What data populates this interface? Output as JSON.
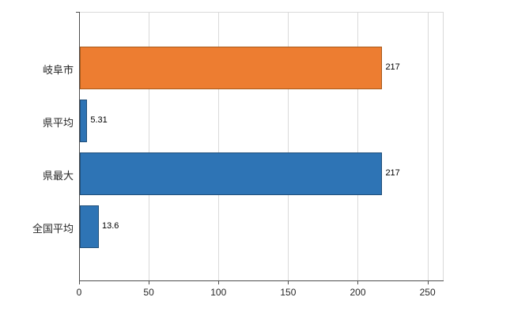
{
  "chart_data": {
    "type": "bar",
    "orientation": "horizontal",
    "title": "",
    "xlabel": "",
    "ylabel": "",
    "categories": [
      "岐阜市",
      "県平均",
      "県最大",
      "全国平均"
    ],
    "values": [
      217,
      5.31,
      217,
      13.6
    ],
    "value_labels": [
      "217",
      "5.31",
      "217",
      "13.6"
    ],
    "bar_colors": [
      "#ED7D31",
      "#2E74B5",
      "#2E74B5",
      "#2E74B5"
    ],
    "bar_border_colors": [
      "#A85A1B",
      "#1F4E79",
      "#1F4E79",
      "#1F4E79"
    ],
    "xlim": [
      0,
      261
    ],
    "x_ticks": [
      0,
      50,
      100,
      150,
      200,
      250
    ],
    "grid": true,
    "legend": false,
    "grid_color": "#d9d9d9",
    "axis_color": "#4d4d4d"
  }
}
